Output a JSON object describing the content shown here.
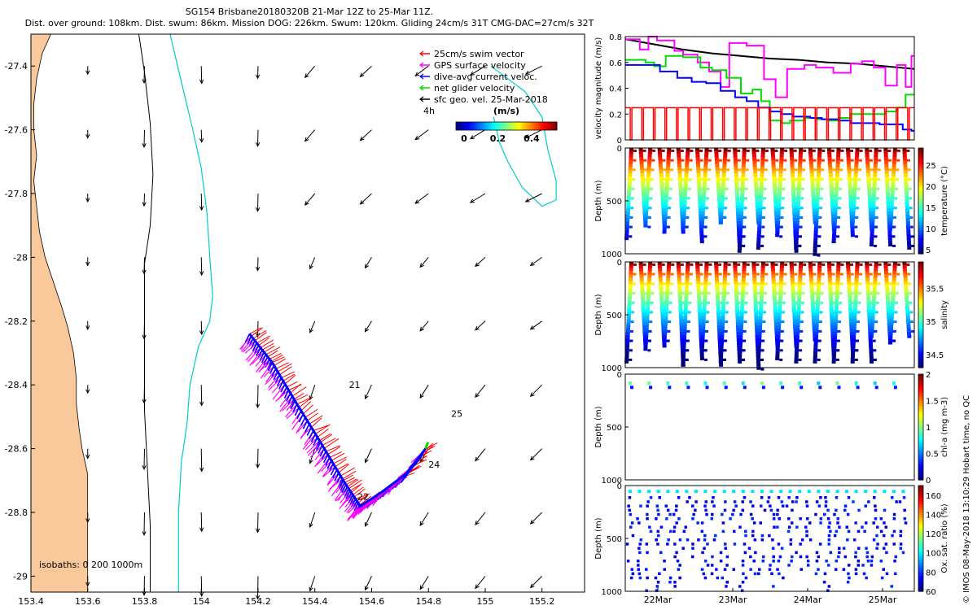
{
  "header": {
    "line1": "SG154 Brisbane20180320B 21-Mar 12Z to 25-Mar 11Z.",
    "line2": "Dist. over ground: 108km. Dist. swum: 86km. Mission DOG: 226km. Swum: 120km. Gliding 24cm/s 31T CMG-DAC=27cm/s 32T"
  },
  "credit": "© IMOS 08-May-2018 13:10:29 Hobart time, no QC",
  "chart_data": [
    {
      "type": "map",
      "xlim": [
        153.4,
        155.35
      ],
      "ylim": [
        -29.05,
        -27.3
      ],
      "xticks": [
        153.4,
        153.6,
        153.8,
        154,
        154.2,
        154.4,
        154.6,
        154.8,
        155,
        155.2
      ],
      "xtick_labels": [
        "153.4",
        "153.6",
        "153.8",
        "154",
        "154.2",
        "154.4",
        "154.6",
        "154.8",
        "155",
        "155.2"
      ],
      "yticks": [
        -27.4,
        -27.6,
        -27.8,
        -28,
        -28.2,
        -28.4,
        -28.6,
        -28.8,
        -29
      ],
      "ytick_labels": [
        "-27.4",
        "-27.6",
        "-27.8",
        "-28",
        "-28.2",
        "-28.4",
        "-28.6",
        "-28.8",
        "-29"
      ],
      "legend": {
        "placement": "top-right",
        "entries": [
          {
            "label": "25cm/s swim vector",
            "color": "#ff0000"
          },
          {
            "label": "GPS surface velocity",
            "color": "#ff00ff"
          },
          {
            "label": "dive-avg current veloc.",
            "color": "#0000ff"
          },
          {
            "label": "net glider velocity",
            "color": "#00dd00"
          },
          {
            "label": "sfc geo. vel. 25-Mar-2018",
            "color": "#000000"
          }
        ],
        "note": "4h"
      },
      "colorbar": {
        "title": "(m/s)",
        "tick_labels": [
          "0",
          "0.2",
          "0.4"
        ],
        "range": [
          0,
          0.55
        ]
      },
      "isobath_label": "isobaths: 0   200  1000m",
      "day_labels": [
        {
          "text": "21",
          "lon": 154.52,
          "lat": -28.41
        },
        {
          "text": "22",
          "lon": 154.55,
          "lat": -28.76
        },
        {
          "text": "24",
          "lon": 154.8,
          "lat": -28.66
        },
        {
          "text": "25",
          "lon": 154.88,
          "lat": -28.5
        }
      ],
      "track": [
        [
          154.17,
          -28.24
        ],
        [
          154.25,
          -28.33
        ],
        [
          154.33,
          -28.45
        ],
        [
          154.42,
          -28.58
        ],
        [
          154.5,
          -28.7
        ],
        [
          154.56,
          -28.78
        ],
        [
          154.63,
          -28.74
        ],
        [
          154.72,
          -28.68
        ],
        [
          154.79,
          -28.6
        ]
      ],
      "coastline": [
        [
          153.4,
          -27.3
        ],
        [
          153.47,
          -27.3
        ],
        [
          153.44,
          -27.36
        ],
        [
          153.42,
          -27.44
        ],
        [
          153.41,
          -27.52
        ],
        [
          153.41,
          -27.6
        ],
        [
          153.42,
          -27.68
        ],
        [
          153.41,
          -27.76
        ],
        [
          153.42,
          -27.84
        ],
        [
          153.43,
          -27.92
        ],
        [
          153.45,
          -28.0
        ],
        [
          153.48,
          -28.08
        ],
        [
          153.51,
          -28.16
        ],
        [
          153.53,
          -28.22
        ],
        [
          153.55,
          -28.3
        ],
        [
          153.56,
          -28.38
        ],
        [
          153.56,
          -28.46
        ],
        [
          153.57,
          -28.54
        ],
        [
          153.58,
          -28.6
        ],
        [
          153.6,
          -28.68
        ],
        [
          153.6,
          -28.76
        ],
        [
          153.6,
          -28.84
        ],
        [
          153.6,
          -28.92
        ],
        [
          153.6,
          -29.0
        ],
        [
          153.6,
          -29.05
        ],
        [
          153.4,
          -29.05
        ]
      ],
      "isobath_200": [
        [
          153.78,
          -27.3
        ],
        [
          153.8,
          -27.42
        ],
        [
          153.82,
          -27.58
        ],
        [
          153.83,
          -27.74
        ],
        [
          153.82,
          -27.9
        ],
        [
          153.8,
          -28.02
        ],
        [
          153.8,
          -28.14
        ],
        [
          153.8,
          -28.3
        ],
        [
          153.8,
          -28.48
        ],
        [
          153.81,
          -28.66
        ],
        [
          153.82,
          -28.84
        ],
        [
          153.82,
          -29.05
        ]
      ],
      "isobath_1000": [
        [
          153.89,
          -27.3
        ],
        [
          153.93,
          -27.45
        ],
        [
          153.97,
          -27.6
        ],
        [
          154.0,
          -27.72
        ],
        [
          154.02,
          -27.86
        ],
        [
          154.03,
          -28.0
        ],
        [
          154.04,
          -28.12
        ],
        [
          154.03,
          -28.2
        ],
        [
          153.99,
          -28.28
        ],
        [
          153.96,
          -28.4
        ],
        [
          153.95,
          -28.52
        ],
        [
          153.93,
          -28.64
        ],
        [
          153.92,
          -28.8
        ],
        [
          153.92,
          -29.05
        ]
      ],
      "isobath_1000_loop": [
        [
          155.02,
          -27.4
        ],
        [
          155.14,
          -27.48
        ],
        [
          155.2,
          -27.56
        ],
        [
          155.22,
          -27.66
        ],
        [
          155.25,
          -27.76
        ],
        [
          155.25,
          -27.82
        ],
        [
          155.2,
          -27.84
        ],
        [
          155.13,
          -27.78
        ],
        [
          155.08,
          -27.7
        ],
        [
          155.05,
          -27.64
        ],
        [
          155.03,
          -27.56
        ]
      ]
    },
    {
      "type": "line",
      "ylabel": "velocity magnitude (m/s)",
      "ylim": [
        0,
        0.8
      ],
      "yticks": [
        0,
        0.2,
        0.4,
        0.6,
        0.8
      ],
      "ytick_labels": [
        "0",
        "0.2",
        "0.4",
        "0.6",
        "0.8"
      ],
      "xlim": [
        0,
        1
      ],
      "series": [
        {
          "color": "#000000",
          "step": false,
          "x": [
            0.0,
            0.1,
            0.2,
            0.3,
            0.4,
            0.5,
            0.6,
            0.7,
            0.8,
            0.9,
            1.0
          ],
          "y": [
            0.78,
            0.74,
            0.7,
            0.67,
            0.65,
            0.63,
            0.62,
            0.6,
            0.59,
            0.57,
            0.55
          ]
        },
        {
          "color": "#ff00ff",
          "step": true,
          "x": [
            0.0,
            0.05,
            0.08,
            0.11,
            0.17,
            0.2,
            0.25,
            0.29,
            0.33,
            0.36,
            0.42,
            0.48,
            0.52,
            0.56,
            0.62,
            0.66,
            0.72,
            0.78,
            0.82,
            0.86,
            0.9,
            0.94,
            0.97,
            0.99,
            1.0
          ],
          "y": [
            0.78,
            0.7,
            0.8,
            0.77,
            0.69,
            0.66,
            0.6,
            0.53,
            0.41,
            0.75,
            0.73,
            0.47,
            0.33,
            0.55,
            0.58,
            0.56,
            0.52,
            0.59,
            0.61,
            0.56,
            0.42,
            0.58,
            0.41,
            0.65,
            0.65
          ]
        },
        {
          "color": "#00dd00",
          "step": true,
          "x": [
            0.0,
            0.07,
            0.1,
            0.14,
            0.2,
            0.26,
            0.3,
            0.35,
            0.4,
            0.44,
            0.47,
            0.5,
            0.54,
            0.57,
            0.62,
            0.66,
            0.7,
            0.74,
            0.78,
            0.82,
            0.86,
            0.9,
            0.94,
            0.97,
            1.0
          ],
          "y": [
            0.62,
            0.6,
            0.57,
            0.65,
            0.64,
            0.56,
            0.54,
            0.48,
            0.36,
            0.39,
            0.3,
            0.15,
            0.13,
            0.15,
            0.17,
            0.16,
            0.15,
            0.17,
            0.2,
            0.2,
            0.2,
            0.22,
            0.25,
            0.35,
            0.35
          ]
        },
        {
          "color": "#0000ff",
          "step": true,
          "x": [
            0.0,
            0.07,
            0.12,
            0.18,
            0.23,
            0.28,
            0.33,
            0.38,
            0.42,
            0.46,
            0.5,
            0.54,
            0.58,
            0.64,
            0.68,
            0.74,
            0.78,
            0.84,
            0.88,
            0.92,
            0.96,
            0.99,
            1.0
          ],
          "y": [
            0.58,
            0.58,
            0.53,
            0.48,
            0.45,
            0.44,
            0.38,
            0.33,
            0.3,
            0.25,
            0.22,
            0.2,
            0.18,
            0.17,
            0.16,
            0.15,
            0.13,
            0.13,
            0.12,
            0.12,
            0.08,
            0.07,
            0.07
          ]
        },
        {
          "color": "#ff0000",
          "step": false,
          "pulses": true,
          "level": 0.25,
          "count": 25
        }
      ]
    },
    {
      "type": "scatter",
      "ylabel": "Depth (m)",
      "ylim": [
        1000,
        0
      ],
      "yticks": [
        0,
        500,
        1000
      ],
      "ytick_labels": [
        "0",
        "500",
        "1000"
      ],
      "colorbar_label": "temperature (°C)",
      "cbar_ticks": [
        5,
        10,
        15,
        20,
        25
      ],
      "cbar_range": [
        4,
        29
      ],
      "colormap": "jet",
      "pattern": "profiles"
    },
    {
      "type": "scatter",
      "ylabel": "Depth (m)",
      "ylim": [
        1000,
        0
      ],
      "yticks": [
        0,
        500,
        1000
      ],
      "ytick_labels": [
        "0",
        "500",
        "1000"
      ],
      "colorbar_label": "salinity",
      "cbar_ticks": [
        34.5,
        35,
        35.5
      ],
      "cbar_range": [
        34.3,
        35.9
      ],
      "colormap": "jet",
      "pattern": "profiles"
    },
    {
      "type": "scatter",
      "ylabel": "Depth (m)",
      "ylim": [
        1000,
        0
      ],
      "yticks": [
        0,
        500,
        1000
      ],
      "ytick_labels": [
        "0",
        "500",
        "1000"
      ],
      "colorbar_label": "chl-a (mg m-3)",
      "cbar_ticks": [
        0,
        0.5,
        1,
        1.5,
        2
      ],
      "cbar_range": [
        0,
        2
      ],
      "colormap": "jet",
      "pattern": "surface"
    },
    {
      "type": "scatter",
      "ylabel": "Depth (m)",
      "ylim": [
        1000,
        0
      ],
      "yticks": [
        0,
        500,
        1000
      ],
      "ytick_labels": [
        "0",
        "500",
        "1000"
      ],
      "colorbar_label": "Ox. sat. ratio (%)",
      "cbar_ticks": [
        60,
        80,
        100,
        120,
        140,
        160
      ],
      "cbar_range": [
        60,
        170
      ],
      "colormap": "jet",
      "pattern": "oxygen",
      "xtick_labels": [
        "22Mar",
        "23Mar",
        "24Mar",
        "25Mar"
      ]
    }
  ]
}
